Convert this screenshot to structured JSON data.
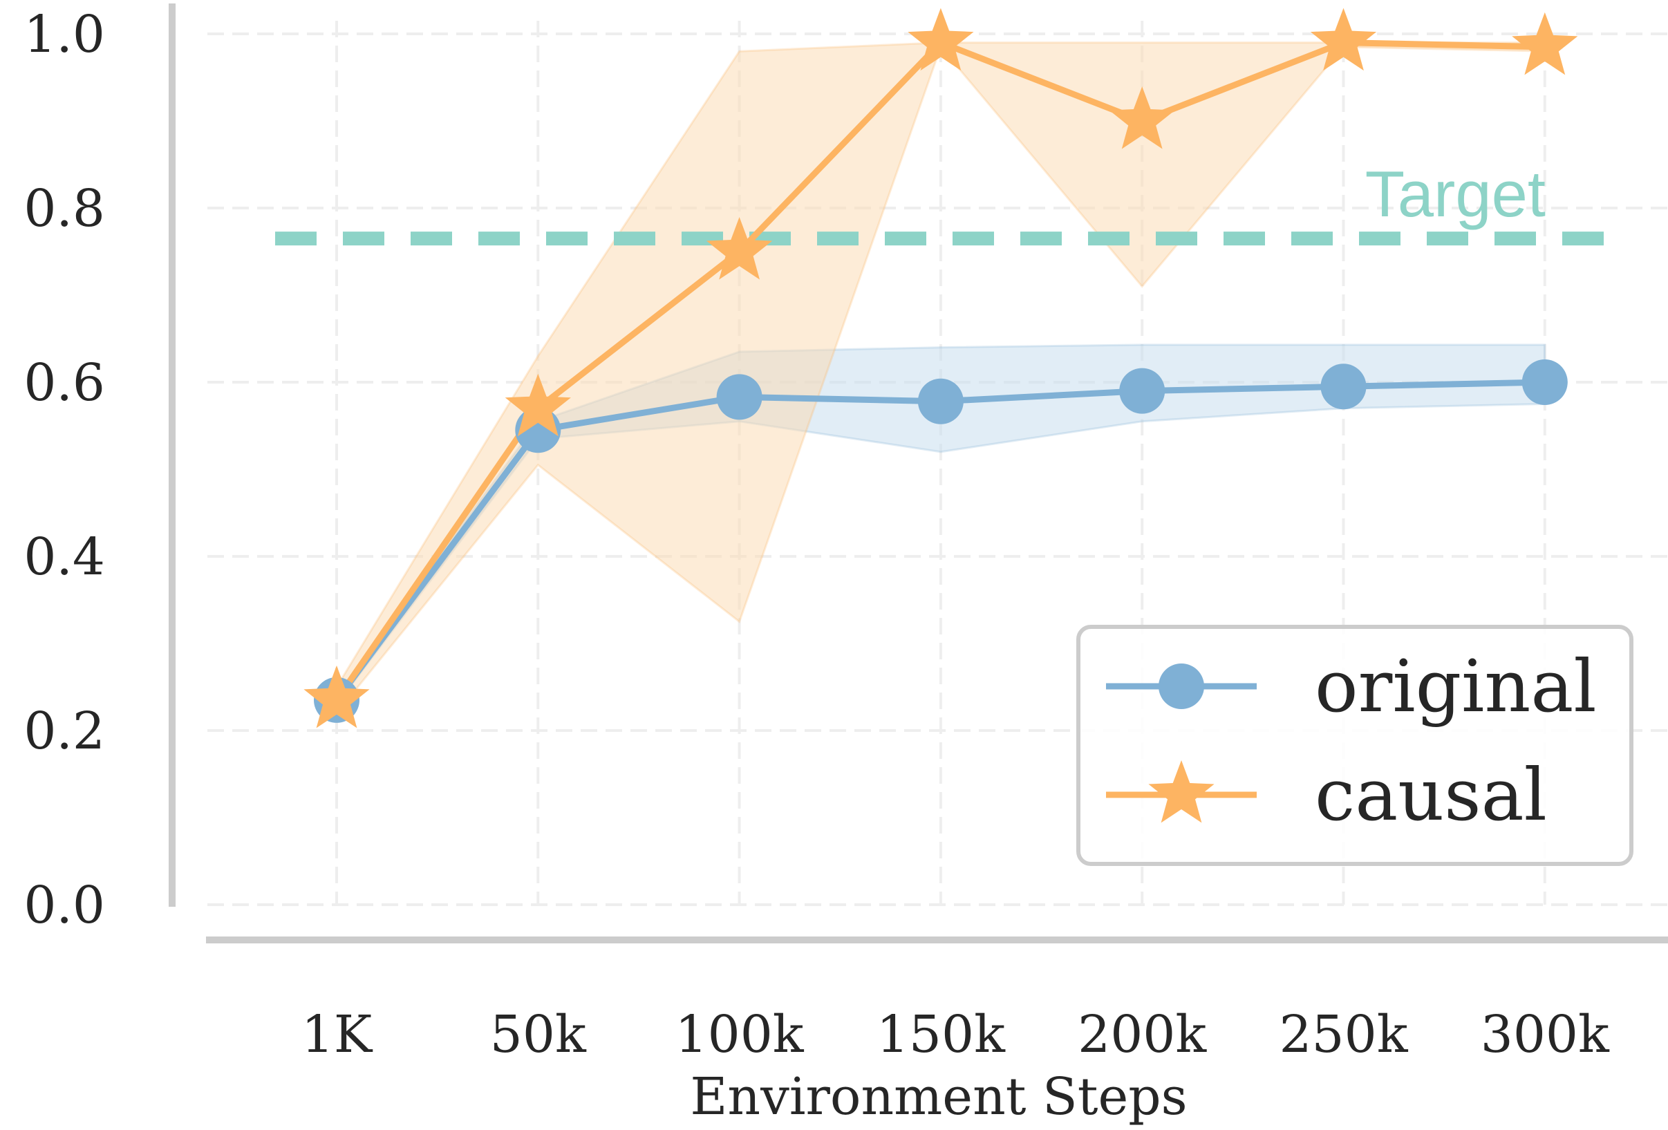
{
  "colors": {
    "original": "#7fb0d5",
    "original_band": "#c4dcee",
    "causal": "#fdb462",
    "causal_band": "#fcd9b0",
    "target": "#8dd3c7",
    "axis": "#cccccc",
    "grid": "#eeeeee",
    "legend_border": "#cccccc"
  },
  "chart_data": {
    "type": "line",
    "categories": [
      "1K",
      "50k",
      "100k",
      "150k",
      "200k",
      "250k",
      "300k"
    ],
    "xlabel": "Environment Steps",
    "ylabel": "",
    "ylim": [
      0.0,
      1.0
    ],
    "yticks": [
      "0.0",
      "0.2",
      "0.4",
      "0.6",
      "0.8",
      "1.0"
    ],
    "grid": true,
    "legend_position": "lower-right",
    "series": [
      {
        "name": "original",
        "key": "original",
        "marker": "circle",
        "values": [
          0.235,
          0.545,
          0.583,
          0.578,
          0.59,
          0.595,
          0.6
        ],
        "lower": [
          0.23,
          0.535,
          0.555,
          0.52,
          0.555,
          0.57,
          0.575
        ],
        "upper": [
          0.24,
          0.555,
          0.635,
          0.64,
          0.643,
          0.643,
          0.643
        ]
      },
      {
        "name": "causal",
        "key": "causal",
        "marker": "star",
        "values": [
          0.235,
          0.57,
          0.75,
          0.99,
          0.9,
          0.99,
          0.985
        ],
        "lower": [
          0.22,
          0.505,
          0.325,
          0.985,
          0.71,
          0.985,
          0.98
        ],
        "upper": [
          0.25,
          0.63,
          0.98,
          0.99,
          0.99,
          0.99,
          0.99
        ]
      }
    ],
    "reference_line": {
      "label": "Target",
      "value": 0.765
    }
  }
}
